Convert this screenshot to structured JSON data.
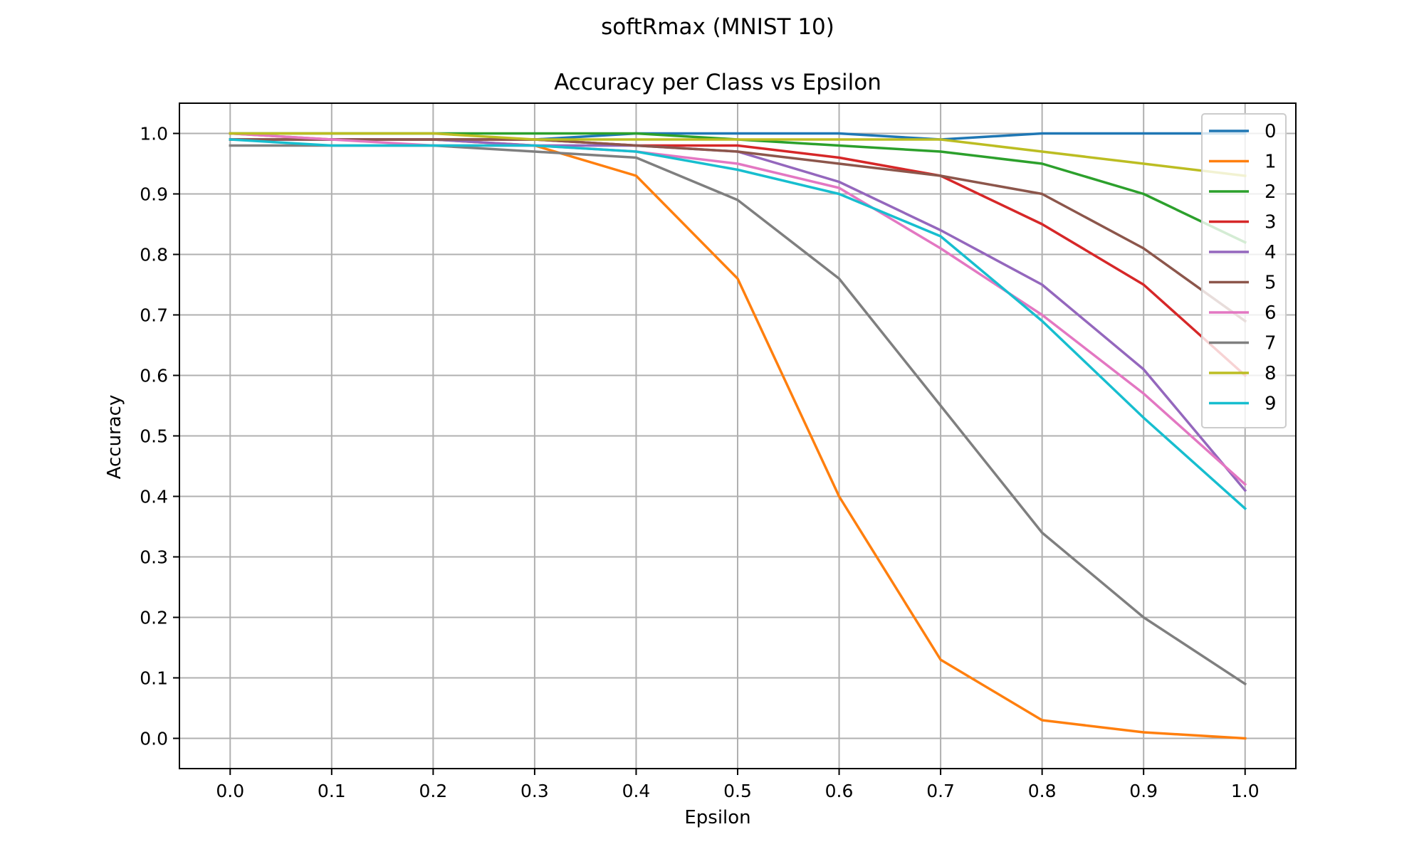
{
  "chart_data": {
    "type": "line",
    "suptitle": "softRmax (MNIST 10)",
    "title": "Accuracy per Class vs Epsilon",
    "xlabel": "Epsilon",
    "ylabel": "Accuracy",
    "xlim": [
      -0.05,
      1.05
    ],
    "ylim": [
      -0.05,
      1.05
    ],
    "x": [
      0.0,
      0.1,
      0.2,
      0.3,
      0.4,
      0.5,
      0.6,
      0.7,
      0.8,
      0.9,
      1.0
    ],
    "x_tick_labels": [
      "0.0",
      "0.1",
      "0.2",
      "0.3",
      "0.4",
      "0.5",
      "0.6",
      "0.7",
      "0.8",
      "0.9",
      "1.0"
    ],
    "y_ticks": [
      0.0,
      0.1,
      0.2,
      0.3,
      0.4,
      0.5,
      0.6,
      0.7,
      0.8,
      0.9,
      1.0
    ],
    "y_tick_labels": [
      "0.0",
      "0.1",
      "0.2",
      "0.3",
      "0.4",
      "0.5",
      "0.6",
      "0.7",
      "0.8",
      "0.9",
      "1.0"
    ],
    "grid": true,
    "legend_position": "top-right",
    "series": [
      {
        "name": "0",
        "color": "#1f77b4",
        "values": [
          0.99,
          0.99,
          0.99,
          0.99,
          1.0,
          1.0,
          1.0,
          0.99,
          1.0,
          1.0,
          1.0
        ]
      },
      {
        "name": "1",
        "color": "#ff7f0e",
        "values": [
          1.0,
          0.99,
          0.99,
          0.98,
          0.93,
          0.76,
          0.4,
          0.13,
          0.03,
          0.01,
          0.0
        ]
      },
      {
        "name": "2",
        "color": "#2ca02c",
        "values": [
          1.0,
          1.0,
          1.0,
          1.0,
          1.0,
          0.99,
          0.98,
          0.97,
          0.95,
          0.9,
          0.82
        ]
      },
      {
        "name": "3",
        "color": "#d62728",
        "values": [
          0.99,
          0.99,
          0.99,
          0.99,
          0.98,
          0.98,
          0.96,
          0.93,
          0.85,
          0.75,
          0.6
        ]
      },
      {
        "name": "4",
        "color": "#9467bd",
        "values": [
          0.99,
          0.99,
          0.99,
          0.98,
          0.98,
          0.97,
          0.92,
          0.84,
          0.75,
          0.61,
          0.41
        ]
      },
      {
        "name": "5",
        "color": "#8c564b",
        "values": [
          0.99,
          0.99,
          0.99,
          0.99,
          0.98,
          0.97,
          0.95,
          0.93,
          0.9,
          0.81,
          0.69
        ]
      },
      {
        "name": "6",
        "color": "#e377c2",
        "values": [
          1.0,
          0.99,
          0.98,
          0.98,
          0.97,
          0.95,
          0.91,
          0.81,
          0.7,
          0.57,
          0.42
        ]
      },
      {
        "name": "7",
        "color": "#7f7f7f",
        "values": [
          0.98,
          0.98,
          0.98,
          0.97,
          0.96,
          0.89,
          0.76,
          0.55,
          0.34,
          0.2,
          0.09
        ]
      },
      {
        "name": "8",
        "color": "#bcbd22",
        "values": [
          1.0,
          1.0,
          1.0,
          0.99,
          0.99,
          0.99,
          0.99,
          0.99,
          0.97,
          0.95,
          0.93
        ]
      },
      {
        "name": "9",
        "color": "#17becf",
        "values": [
          0.99,
          0.98,
          0.98,
          0.98,
          0.97,
          0.94,
          0.9,
          0.83,
          0.69,
          0.53,
          0.38
        ]
      }
    ]
  }
}
